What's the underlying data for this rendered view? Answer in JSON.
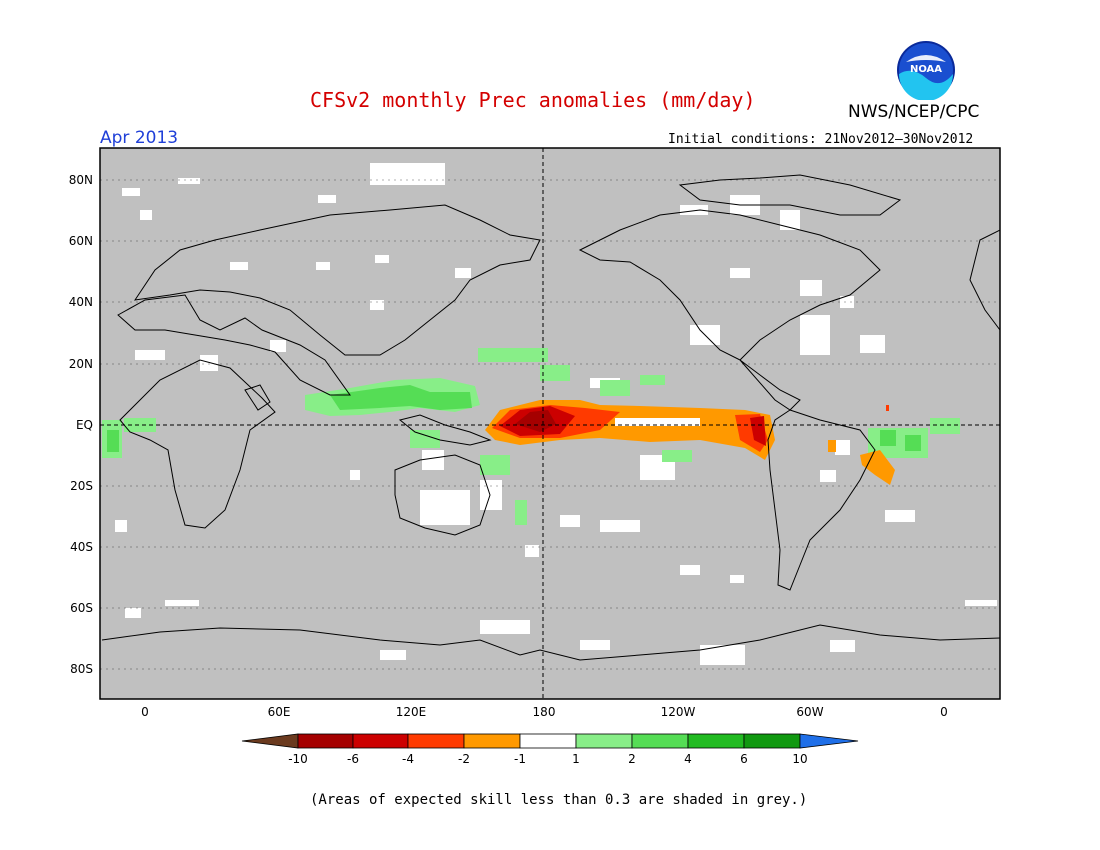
{
  "title": "CFSv2 monthly Prec anomalies (mm/day)",
  "agency": "NWS/NCEP/CPC",
  "logo_text": "NOAA",
  "valid_month": "Apr 2013",
  "initial_conditions": "Initial conditions: 21Nov2012–30Nov2012",
  "footnote": "(Areas of expected skill less than 0.3 are shaded in grey.)",
  "map": {
    "lat_labels": [
      "80N",
      "60N",
      "40N",
      "20N",
      "EQ",
      "20S",
      "40S",
      "60S",
      "80S"
    ],
    "lon_labels": [
      "0",
      "60E",
      "120E",
      "180",
      "120W",
      "60W",
      "0"
    ],
    "background_color": "#c0c0c0"
  },
  "colorbar": {
    "labels": [
      "-10",
      "-6",
      "-4",
      "-2",
      "-1",
      "1",
      "2",
      "4",
      "6",
      "10"
    ],
    "colors": [
      "#6b3a1f",
      "#a50000",
      "#cc0000",
      "#ff3a00",
      "#ff9900",
      "#ffffff",
      "#88ee88",
      "#55dd55",
      "#22bb22",
      "#119911",
      "#1f6fe8"
    ]
  }
}
